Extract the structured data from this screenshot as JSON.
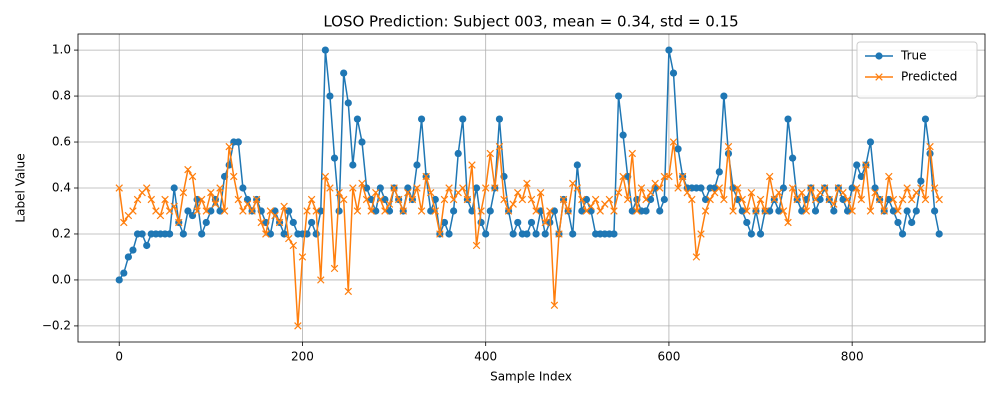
{
  "chart_data": {
    "type": "line",
    "title": "LOSO Prediction: Subject 003, mean = 0.34, std = 0.15",
    "x_label": "Sample Index",
    "y_label": "Label Value",
    "x": [
      0,
      5,
      10,
      15,
      20,
      25,
      30,
      35,
      40,
      45,
      50,
      55,
      60,
      65,
      70,
      75,
      80,
      85,
      90,
      95,
      100,
      105,
      110,
      115,
      120,
      125,
      130,
      135,
      140,
      145,
      150,
      155,
      160,
      165,
      170,
      175,
      180,
      185,
      190,
      195,
      200,
      205,
      210,
      215,
      220,
      225,
      230,
      235,
      240,
      245,
      250,
      255,
      260,
      265,
      270,
      275,
      280,
      285,
      290,
      295,
      300,
      305,
      310,
      315,
      320,
      325,
      330,
      335,
      340,
      345,
      350,
      355,
      360,
      365,
      370,
      375,
      380,
      385,
      390,
      395,
      400,
      405,
      410,
      415,
      420,
      425,
      430,
      435,
      440,
      445,
      450,
      455,
      460,
      465,
      470,
      475,
      480,
      485,
      490,
      495,
      500,
      505,
      510,
      515,
      520,
      525,
      530,
      535,
      540,
      545,
      550,
      555,
      560,
      565,
      570,
      575,
      580,
      585,
      590,
      595,
      600,
      605,
      610,
      615,
      620,
      625,
      630,
      635,
      640,
      645,
      650,
      655,
      660,
      665,
      670,
      675,
      680,
      685,
      690,
      695,
      700,
      705,
      710,
      715,
      720,
      725,
      730,
      735,
      740,
      745,
      750,
      755,
      760,
      765,
      770,
      775,
      780,
      785,
      790,
      795,
      800,
      805,
      810,
      815,
      820,
      825,
      830,
      835,
      840,
      845,
      850,
      855,
      860,
      865,
      870,
      875,
      880,
      885,
      890,
      895
    ],
    "series": [
      {
        "name": "True",
        "color": "#1f77b4",
        "marker": "o",
        "values": [
          0,
          0.03,
          0.1,
          0.13,
          0.2,
          0.2,
          0.15,
          0.2,
          0.2,
          0.2,
          0.2,
          0.2,
          0.4,
          0.25,
          0.2,
          0.3,
          0.28,
          0.35,
          0.2,
          0.25,
          0.3,
          0.35,
          0.3,
          0.45,
          0.5,
          0.6,
          0.6,
          0.4,
          0.35,
          0.3,
          0.35,
          0.3,
          0.25,
          0.2,
          0.3,
          0.25,
          0.2,
          0.3,
          0.25,
          0.2,
          0.2,
          0.2,
          0.25,
          0.2,
          0.3,
          1.0,
          0.8,
          0.53,
          0.3,
          0.9,
          0.77,
          0.5,
          0.7,
          0.6,
          0.4,
          0.35,
          0.3,
          0.4,
          0.35,
          0.3,
          0.4,
          0.35,
          0.3,
          0.4,
          0.35,
          0.5,
          0.7,
          0.45,
          0.3,
          0.35,
          0.2,
          0.25,
          0.2,
          0.3,
          0.55,
          0.7,
          0.35,
          0.3,
          0.4,
          0.25,
          0.2,
          0.3,
          0.4,
          0.7,
          0.45,
          0.3,
          0.2,
          0.25,
          0.2,
          0.2,
          0.25,
          0.2,
          0.3,
          0.2,
          0.25,
          0.3,
          0.2,
          0.35,
          0.3,
          0.2,
          0.5,
          0.3,
          0.35,
          0.3,
          0.2,
          0.2,
          0.2,
          0.2,
          0.2,
          0.8,
          0.63,
          0.45,
          0.3,
          0.35,
          0.3,
          0.3,
          0.35,
          0.4,
          0.3,
          0.35,
          1.0,
          0.9,
          0.57,
          0.45,
          0.4,
          0.4,
          0.4,
          0.4,
          0.35,
          0.4,
          0.4,
          0.47,
          0.8,
          0.55,
          0.4,
          0.35,
          0.3,
          0.25,
          0.2,
          0.3,
          0.2,
          0.3,
          0.3,
          0.35,
          0.3,
          0.4,
          0.7,
          0.53,
          0.35,
          0.3,
          0.35,
          0.4,
          0.3,
          0.35,
          0.4,
          0.35,
          0.3,
          0.4,
          0.35,
          0.3,
          0.4,
          0.5,
          0.45,
          0.5,
          0.6,
          0.4,
          0.35,
          0.3,
          0.35,
          0.3,
          0.25,
          0.2,
          0.3,
          0.25,
          0.3,
          0.43,
          0.7,
          0.55,
          0.3,
          0.2
        ]
      },
      {
        "name": "Predicted",
        "color": "#ff7f0e",
        "marker": "x",
        "values": [
          0.4,
          0.25,
          0.28,
          0.3,
          0.35,
          0.38,
          0.4,
          0.35,
          0.3,
          0.28,
          0.35,
          0.3,
          0.32,
          0.25,
          0.38,
          0.48,
          0.45,
          0.3,
          0.35,
          0.3,
          0.38,
          0.33,
          0.4,
          0.3,
          0.58,
          0.45,
          0.35,
          0.3,
          0.33,
          0.3,
          0.35,
          0.25,
          0.2,
          0.3,
          0.28,
          0.25,
          0.32,
          0.18,
          0.15,
          -0.2,
          0.1,
          0.3,
          0.35,
          0.3,
          0,
          0.45,
          0.4,
          0.05,
          0.38,
          0.35,
          -0.05,
          0.4,
          0.3,
          0.42,
          0.35,
          0.3,
          0.38,
          0.35,
          0.3,
          0.33,
          0.4,
          0.35,
          0.3,
          0.38,
          0.35,
          0.4,
          0.3,
          0.45,
          0.38,
          0.3,
          0.2,
          0.35,
          0.4,
          0.35,
          0.38,
          0.4,
          0.35,
          0.5,
          0.15,
          0.3,
          0.4,
          0.55,
          0.4,
          0.58,
          0.35,
          0.3,
          0.33,
          0.38,
          0.35,
          0.42,
          0.35,
          0.3,
          0.38,
          0.25,
          0.3,
          -0.11,
          0.2,
          0.35,
          0.3,
          0.42,
          0.4,
          0.35,
          0.3,
          0.32,
          0.35,
          0.3,
          0.33,
          0.35,
          0.3,
          0.38,
          0.45,
          0.35,
          0.55,
          0.3,
          0.4,
          0.35,
          0.38,
          0.42,
          0.4,
          0.45,
          0.45,
          0.6,
          0.4,
          0.45,
          0.38,
          0.35,
          0.1,
          0.2,
          0.3,
          0.35,
          0.38,
          0.4,
          0.35,
          0.58,
          0.3,
          0.4,
          0.35,
          0.3,
          0.38,
          0.3,
          0.35,
          0.3,
          0.45,
          0.35,
          0.38,
          0.3,
          0.25,
          0.4,
          0.35,
          0.38,
          0.3,
          0.4,
          0.35,
          0.38,
          0.4,
          0.35,
          0.33,
          0.4,
          0.38,
          0.35,
          0.3,
          0.4,
          0.35,
          0.5,
          0.3,
          0.38,
          0.35,
          0.3,
          0.45,
          0.35,
          0.3,
          0.35,
          0.4,
          0.35,
          0.38,
          0.4,
          0.35,
          0.58,
          0.4,
          0.35
        ]
      }
    ],
    "xlim": [
      -45,
      945
    ],
    "ylim": [
      -0.27,
      1.07
    ],
    "xticks": [
      0,
      200,
      400,
      600,
      800
    ],
    "yticks": [
      {
        "value": -0.2,
        "label": "−0.2"
      },
      {
        "value": 0,
        "label": "0.0"
      },
      0.2,
      0.4,
      0.6,
      0.8,
      {
        "value": 1,
        "label": "1.0"
      }
    ],
    "grid": true,
    "legend": "upper right"
  }
}
